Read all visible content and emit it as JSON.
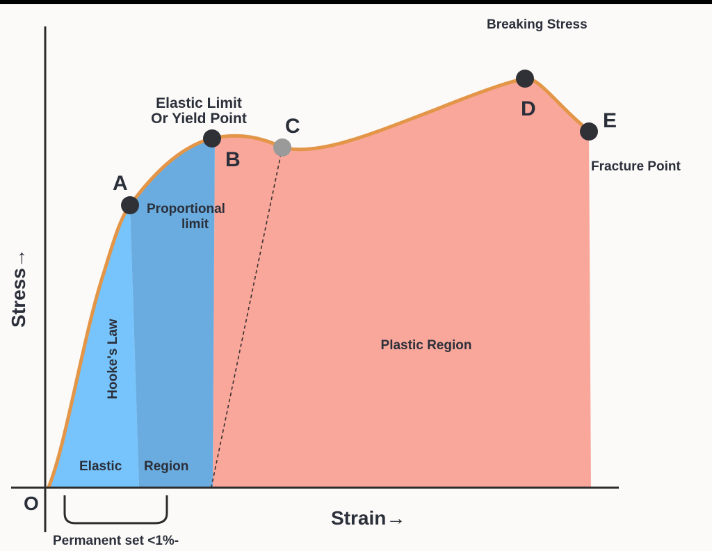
{
  "diagram": {
    "origin_label": "O",
    "y_axis_label": "Stress→",
    "x_axis_label": "Strain→",
    "points": {
      "A": "A",
      "B": "B",
      "C": "C",
      "D": "D",
      "E": "E"
    },
    "annotations": {
      "elastic_limit_line1": "Elastic Limit",
      "elastic_limit_line2": "Or Yield Point",
      "proportional_line1": "Proportional",
      "proportional_line2": "limit",
      "breaking_stress": "Breaking Stress",
      "fracture_point": "Fracture Point",
      "hookes_law": "Hooke's Law",
      "elastic": "Elastic",
      "region": "Region",
      "plastic_region": "Plastic Region",
      "permanent_set": "Permanent set <1%-"
    },
    "colors": {
      "elastic_light": "#76c4fb",
      "elastic_dark": "#6aacdf",
      "plastic": "#f9a79a",
      "curve": "#e39548",
      "point_dark": "#2f3137",
      "point_c": "#9a9a9a",
      "axis": "#2b2b2b"
    }
  }
}
